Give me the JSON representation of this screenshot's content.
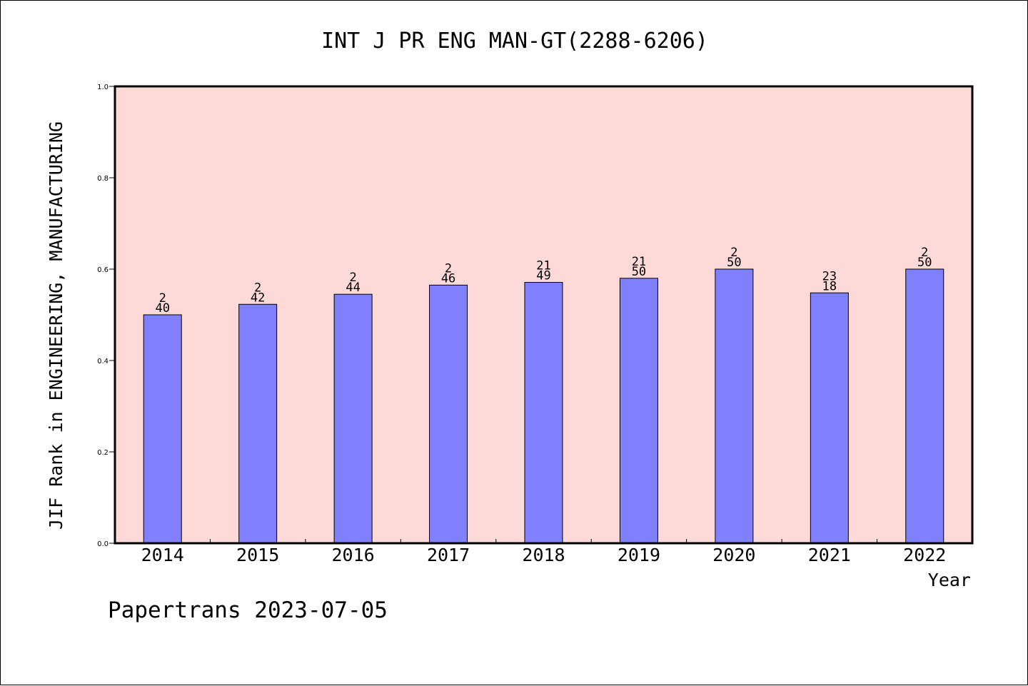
{
  "chart_data": {
    "type": "bar",
    "title": "INT J PR ENG MAN-GT(2288-6206)",
    "xlabel": "Year",
    "ylabel": "JIF Rank in ENGINEERING, MANUFACTURING",
    "ylim": [
      0,
      1.0
    ],
    "yticks": [
      "0.0",
      "0.2",
      "0.4",
      "0.6",
      "0.8",
      "1.0"
    ],
    "categories": [
      "2014",
      "2015",
      "2016",
      "2017",
      "2018",
      "2019",
      "2020",
      "2021",
      "2022"
    ],
    "values": [
      0.5,
      0.523,
      0.545,
      0.565,
      0.571,
      0.58,
      0.6,
      0.548,
      0.6
    ],
    "annotations": [
      [
        "2",
        "40"
      ],
      [
        "2",
        "42"
      ],
      [
        "2",
        "44"
      ],
      [
        "2",
        "46"
      ],
      [
        "21",
        "49"
      ],
      [
        "21",
        "50"
      ],
      [
        "2",
        "50"
      ],
      [
        "23",
        "18"
      ],
      [
        "2",
        "50"
      ]
    ],
    "grid": false,
    "colors": {
      "plot_background": "#fdd9d7",
      "bar": "#8080ff",
      "outline": "#000000"
    }
  },
  "footer": {
    "credit": "Papertrans 2023-07-05"
  }
}
